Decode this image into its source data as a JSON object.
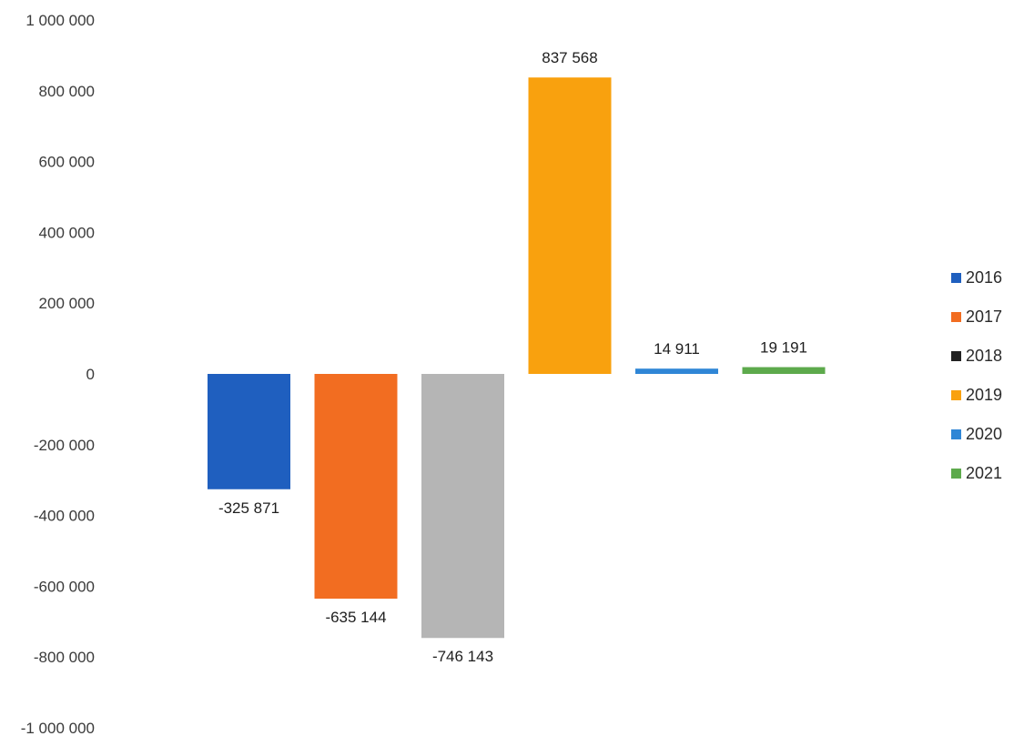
{
  "chart_data": {
    "type": "bar",
    "title": "",
    "xlabel": "",
    "ylabel": "",
    "ylim": [
      -1000000,
      1000000
    ],
    "y_ticks": [
      1000000,
      800000,
      600000,
      400000,
      200000,
      0,
      -200000,
      -400000,
      -600000,
      -800000,
      -1000000
    ],
    "y_tick_labels": [
      "1 000 000",
      "800 000",
      "600 000",
      "400 000",
      "200 000",
      "0",
      "-200 000",
      "-400 000",
      "-600 000",
      "-800 000",
      "-1 000 000"
    ],
    "grid": false,
    "legend_position": "right",
    "series": [
      {
        "name": "2016",
        "value": -325871,
        "label": "-325 871",
        "color": "#1f5fbf",
        "legend_color": "#1f5fbf"
      },
      {
        "name": "2017",
        "value": -635144,
        "label": "-635 144",
        "color": "#f26d21",
        "legend_color": "#f26d21"
      },
      {
        "name": "2018",
        "value": -746143,
        "label": "-746 143",
        "color": "#b5b5b5",
        "legend_color": "#222222"
      },
      {
        "name": "2019",
        "value": 837568,
        "label": "837 568",
        "color": "#f9a10e",
        "legend_color": "#f9a10e"
      },
      {
        "name": "2020",
        "value": 14911,
        "label": "14 911",
        "color": "#2f86d6",
        "legend_color": "#2f86d6"
      },
      {
        "name": "2021",
        "value": 19191,
        "label": "19 191",
        "color": "#5daa4c",
        "legend_color": "#5daa4c"
      }
    ]
  }
}
